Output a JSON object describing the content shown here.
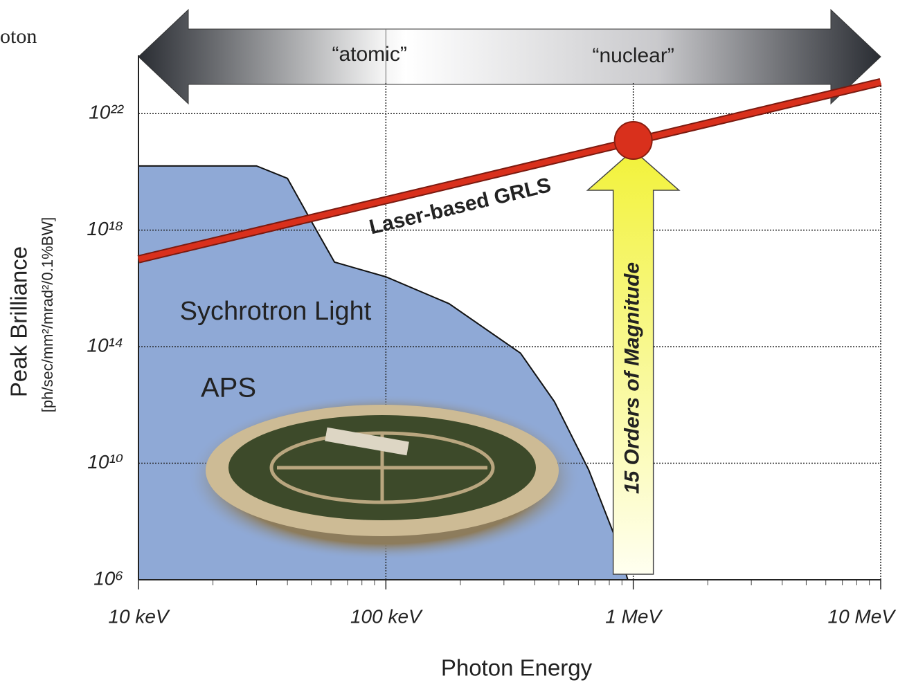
{
  "chart_data": {
    "type": "line",
    "corner_text": "oton",
    "xlabel": "Photon Energy",
    "ylabel": "Peak Brilliance",
    "ylabel_units": "[ph/sec/mm²/mrad²/0.1%BW]",
    "xscale": "log",
    "yscale": "log",
    "grid": true,
    "xlim": [
      10,
      10000
    ],
    "ylim": [
      1000000.0,
      1e+24
    ],
    "xticks": [
      {
        "value": 10,
        "label": "10 keV"
      },
      {
        "value": 100,
        "label": "100 keV"
      },
      {
        "value": 1000,
        "label": "1 MeV"
      },
      {
        "value": 10000,
        "label": "10 MeV"
      }
    ],
    "xminorticks": [
      20,
      30,
      40,
      50,
      60,
      70,
      80,
      90,
      200,
      300,
      400,
      500,
      600,
      700,
      800,
      900,
      2000,
      3000,
      4000,
      5000,
      6000,
      7000,
      8000,
      9000
    ],
    "yticks": [
      {
        "value": 1000000.0,
        "label": "10⁶"
      },
      {
        "value": 10000000000.0,
        "label": "10¹⁰"
      },
      {
        "value": 100000000000000.0,
        "label": "10¹⁴"
      },
      {
        "value": 1e+18,
        "label": "10¹⁸"
      },
      {
        "value": 1e+22,
        "label": "10²²"
      }
    ],
    "regions": [
      {
        "label": "“atomic”"
      },
      {
        "label": "“nuclear”"
      }
    ],
    "region_boundary": 100,
    "series": [
      {
        "name": "Laser-based GRLS",
        "type": "line",
        "color": "#d9301c",
        "x": [
          10,
          10000
        ],
        "values": [
          1e+17,
          1.2e+23
        ]
      },
      {
        "name": "Sychrotron Light",
        "type": "area",
        "color": "#8fa9d6",
        "x": [
          10,
          30,
          40,
          50,
          62,
          100,
          180,
          350,
          480,
          660,
          850,
          950
        ],
        "values": [
          1.6e+20,
          1.6e+20,
          6e+19,
          2e+18,
          8e+16,
          2.5e+16,
          3000000000000000.0,
          60000000000000.0,
          1300000000000.0,
          6000000000.0,
          25000000.0,
          1000000.0
        ]
      }
    ],
    "marker": {
      "x": 1000,
      "y": 1.2e+21,
      "color": "#d9301c"
    },
    "facility_label": "APS",
    "range_annotation": {
      "label": "15 Orders of Magnitude",
      "from": 1000000.0,
      "to": 1.2e+21,
      "x": 1000
    }
  }
}
